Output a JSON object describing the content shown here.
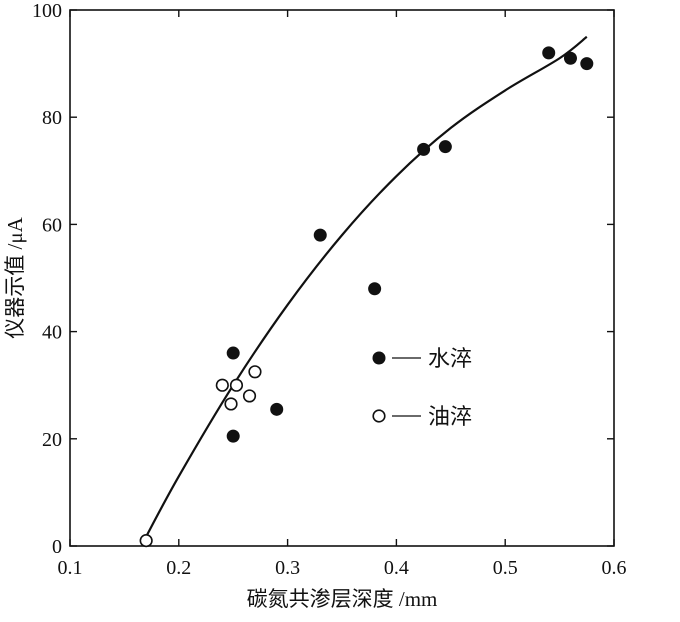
{
  "chart_data": {
    "type": "scatter",
    "xlabel": "碳氮共渗层深度 /mm",
    "ylabel": "仪器示值 /μA",
    "xlim": [
      0.1,
      0.6
    ],
    "ylim": [
      0,
      100
    ],
    "x_ticks": [
      0.1,
      0.2,
      0.3,
      0.4,
      0.5,
      0.6
    ],
    "x_tick_labels": [
      "0.1",
      "0.2",
      "0.3",
      "0.4",
      "0.5",
      "0.6"
    ],
    "y_ticks": [
      0,
      20,
      40,
      60,
      80,
      100
    ],
    "y_tick_labels": [
      "0",
      "20",
      "40",
      "60",
      "80",
      "100"
    ],
    "grid": false,
    "legend_position": "center-right",
    "series": [
      {
        "name": "水淬",
        "marker": "filled-circle",
        "color": "#111111",
        "points": [
          {
            "x": 0.25,
            "y": 36
          },
          {
            "x": 0.25,
            "y": 20.5
          },
          {
            "x": 0.29,
            "y": 25.5
          },
          {
            "x": 0.33,
            "y": 58
          },
          {
            "x": 0.38,
            "y": 48
          },
          {
            "x": 0.425,
            "y": 74
          },
          {
            "x": 0.445,
            "y": 74.5
          },
          {
            "x": 0.54,
            "y": 92
          },
          {
            "x": 0.56,
            "y": 91
          },
          {
            "x": 0.575,
            "y": 90
          }
        ]
      },
      {
        "name": "油淬",
        "marker": "hollow-circle",
        "color": "#111111",
        "points": [
          {
            "x": 0.17,
            "y": 1
          },
          {
            "x": 0.24,
            "y": 30
          },
          {
            "x": 0.248,
            "y": 26.5
          },
          {
            "x": 0.253,
            "y": 30
          },
          {
            "x": 0.265,
            "y": 28
          },
          {
            "x": 0.27,
            "y": 32.5
          }
        ]
      }
    ],
    "fit_curve": {
      "type": "line",
      "color": "#111111",
      "points": [
        {
          "x": 0.168,
          "y": 1
        },
        {
          "x": 0.2,
          "y": 13
        },
        {
          "x": 0.25,
          "y": 30
        },
        {
          "x": 0.3,
          "y": 45
        },
        {
          "x": 0.35,
          "y": 58
        },
        {
          "x": 0.4,
          "y": 69
        },
        {
          "x": 0.45,
          "y": 78
        },
        {
          "x": 0.5,
          "y": 85
        },
        {
          "x": 0.55,
          "y": 91
        },
        {
          "x": 0.575,
          "y": 95
        }
      ]
    }
  }
}
